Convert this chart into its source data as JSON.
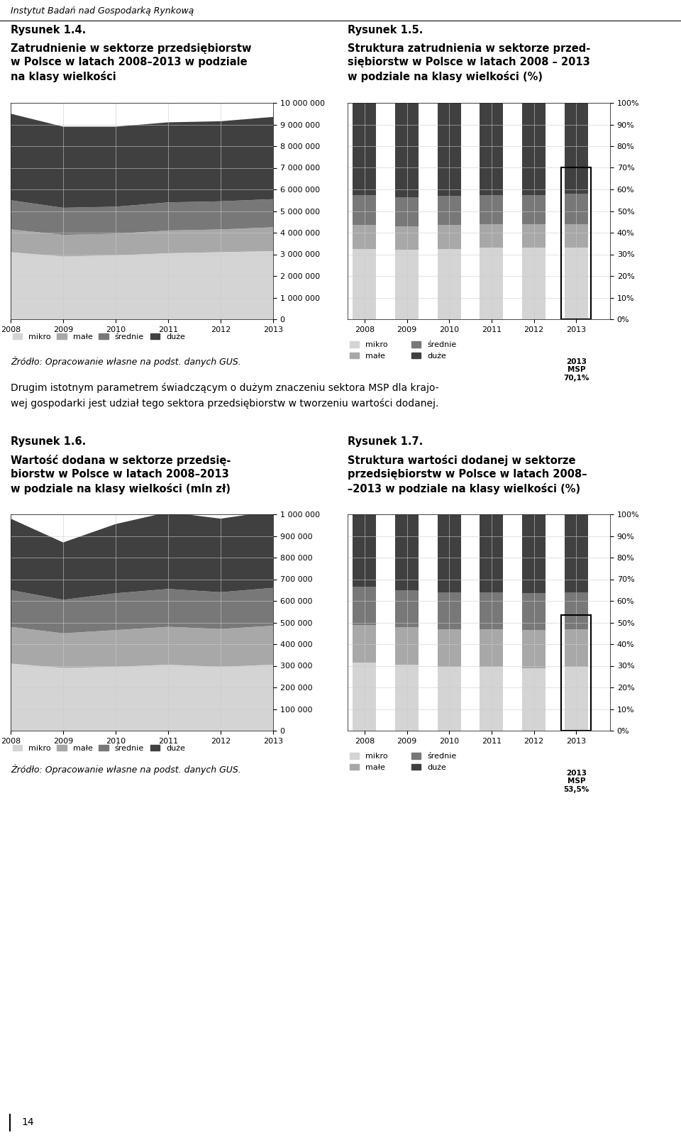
{
  "header": "Instytut Badań nad Gospodarką Rynkową",
  "title14": "Rysunek 1.4.",
  "subtitle14": "Zatrudnienie w sektorze przedsiębiorstw\nw Polsce w latach 2008–2013 w podziale\nna klasy wielkości",
  "title15": "Rysunek 1.5.",
  "subtitle15": "Struktura zatrudnienia w sektorze przed-\nsiębiorstw w Polsce w latach 2008 – 2013\nw podziale na klasy wielkości (%)",
  "title16": "Rysunek 1.6.",
  "subtitle16": "Wartość dodana w sektorze przedsię-\nbiorstw w Polsce w latach 2008–2013\nw podziale na klasy wielkości (mln zł)",
  "title17": "Rysunek 1.7.",
  "subtitle17": "Struktura wartości dodanej w sektorze\nprzedsiębiorstw w Polsce w latach 2008–\n–2013 w podziale na klasy wielkości (%)",
  "years": [
    2008,
    2009,
    2010,
    2011,
    2012,
    2013
  ],
  "colors": {
    "mikro": "#d4d4d4",
    "male": "#a8a8a8",
    "srednie": "#787878",
    "duze": "#404040"
  },
  "fig14": {
    "mikro": [
      3100000,
      2900000,
      2950000,
      3050000,
      3100000,
      3150000
    ],
    "male": [
      1050000,
      1000000,
      1000000,
      1050000,
      1050000,
      1100000
    ],
    "srednie": [
      1350000,
      1250000,
      1250000,
      1300000,
      1300000,
      1300000
    ],
    "duze": [
      4000000,
      3750000,
      3700000,
      3700000,
      3700000,
      3800000
    ]
  },
  "fig15": {
    "mikro": [
      32.5,
      32.0,
      32.5,
      33.0,
      33.0,
      33.0
    ],
    "male": [
      11.0,
      11.0,
      11.0,
      11.0,
      11.0,
      11.0
    ],
    "srednie": [
      14.0,
      13.5,
      13.5,
      13.5,
      13.5,
      14.0
    ],
    "duze": [
      42.5,
      43.5,
      43.0,
      42.5,
      42.5,
      42.0
    ]
  },
  "fig15_msp_val": 70.1,
  "fig15_msp": "70,1%",
  "fig16": {
    "mikro": [
      310000,
      290000,
      295000,
      305000,
      295000,
      305000
    ],
    "male": [
      170000,
      160000,
      170000,
      175000,
      175000,
      180000
    ],
    "srednie": [
      170000,
      155000,
      170000,
      175000,
      170000,
      175000
    ],
    "duze": [
      330000,
      265000,
      320000,
      355000,
      340000,
      355000
    ]
  },
  "fig17": {
    "mikro": [
      31.5,
      30.5,
      29.5,
      29.5,
      29.0,
      29.5
    ],
    "male": [
      17.5,
      17.5,
      17.5,
      17.5,
      17.5,
      17.5
    ],
    "srednie": [
      17.5,
      17.0,
      17.0,
      17.0,
      17.0,
      17.0
    ],
    "duze": [
      33.5,
      35.0,
      36.0,
      36.0,
      36.5,
      36.0
    ]
  },
  "fig17_msp_val": 53.5,
  "fig17_msp": "53,5%",
  "source": "Źródło: Opracowanie własne na podst. danych GUS.",
  "paragraph": "Drugim istotnym parametrem świadczącym o dużym znaczeniu sektora MSP dla krajo-\nwej gospodarki jest udział tego sektora przedsiębiorstw w tworzeniu wartości dodanej.",
  "page_num": "14",
  "legend_labels": [
    "mikro",
    "małe",
    "średnie",
    "duże"
  ]
}
